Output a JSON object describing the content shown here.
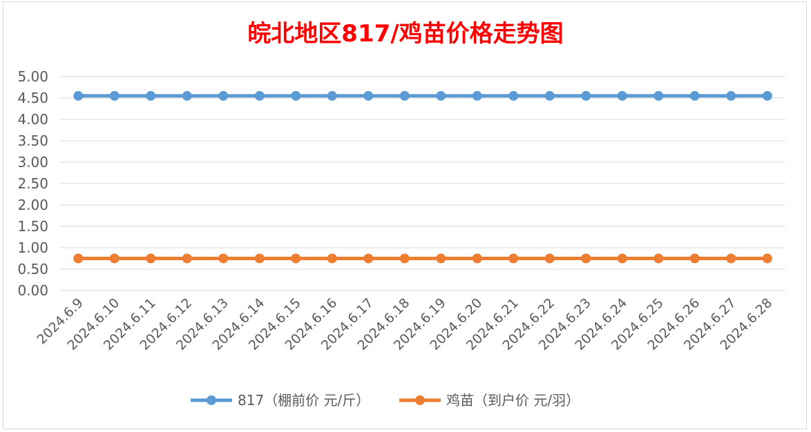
{
  "chart_data": {
    "type": "line",
    "title": "皖北地区817/鸡苗价格走势图",
    "categories": [
      "2024.6.9",
      "2024.6.10",
      "2024.6.11",
      "2024.6.12",
      "2024.6.13",
      "2024.6.14",
      "2024.6.15",
      "2024.6.16",
      "2024.6.17",
      "2024.6.18",
      "2024.6.19",
      "2024.6.20",
      "2024.6.21",
      "2024.6.22",
      "2024.6.23",
      "2024.6.24",
      "2024.6.25",
      "2024.6.26",
      "2024.6.27",
      "2024.6.28"
    ],
    "series": [
      {
        "name": "817（棚前价 元/斤）",
        "color": "#5b9bd5",
        "values": [
          4.55,
          4.55,
          4.55,
          4.55,
          4.55,
          4.55,
          4.55,
          4.55,
          4.55,
          4.55,
          4.55,
          4.55,
          4.55,
          4.55,
          4.55,
          4.55,
          4.55,
          4.55,
          4.55,
          4.55
        ]
      },
      {
        "name": "鸡苗（到户价 元/羽）",
        "color": "#ed7d31",
        "values": [
          0.75,
          0.75,
          0.75,
          0.75,
          0.75,
          0.75,
          0.75,
          0.75,
          0.75,
          0.75,
          0.75,
          0.75,
          0.75,
          0.75,
          0.75,
          0.75,
          0.75,
          0.75,
          0.75,
          0.75
        ]
      }
    ],
    "y_ticks": [
      "0.00",
      "0.50",
      "1.00",
      "1.50",
      "2.00",
      "2.50",
      "3.00",
      "3.50",
      "4.00",
      "4.50",
      "5.00"
    ],
    "ylim": [
      0,
      5
    ],
    "grid": true,
    "legend": "bottom",
    "title_color": "#ff0000"
  }
}
